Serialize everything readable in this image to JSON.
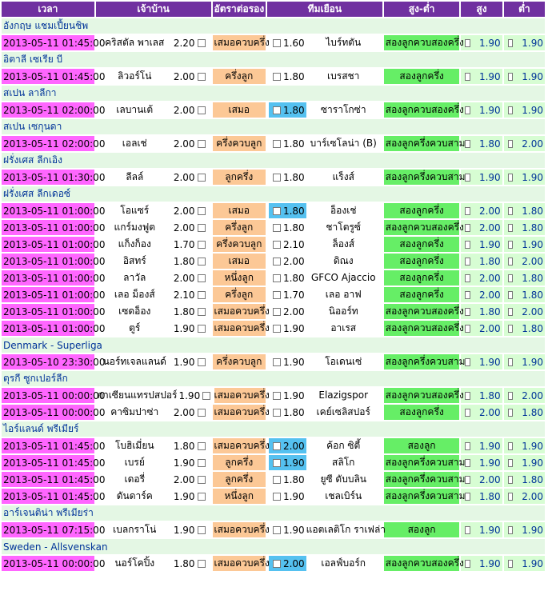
{
  "header": {
    "time": "เวลา",
    "home": "เจ้าบ้าน",
    "handicap": "อัตราต่อรอง",
    "away": "ทีมเยือน",
    "over_under": "สูง-ต่ำ",
    "over": "สูง",
    "under": "ต่ำ"
  },
  "sections": [
    {
      "league": "อังกฤษ แชมเปี้ยนชิพ",
      "matches": [
        {
          "time": "2013-05-11 01:45:00",
          "home": "คริสตัล พาเลส",
          "home_price": "2.20",
          "handicap": "เสมอควบครึ่ง",
          "away_price": "1.60",
          "away": "ไบร์ทตัน",
          "ou": "สองลูกควบสองครึ่ง",
          "over": "1.90",
          "under": "1.90",
          "fav": "home",
          "away_hl": false
        }
      ]
    },
    {
      "league": "อิตาลี เซเรีย บี",
      "matches": [
        {
          "time": "2013-05-11 01:45:00",
          "home": "ลิวอร์โน่",
          "home_price": "2.00",
          "handicap": "ครึ่งลูก",
          "away_price": "1.80",
          "away": "เบรสชา",
          "ou": "สองลูกครึ่ง",
          "over": "1.90",
          "under": "1.90",
          "fav": "home",
          "away_hl": false
        }
      ]
    },
    {
      "league": "สเปน ลาลีกา",
      "matches": [
        {
          "time": "2013-05-11 02:00:00",
          "home": "เลบานเต้",
          "home_price": "2.00",
          "handicap": "เสมอ",
          "away_price": "1.80",
          "away": "ซาราโกซ่า",
          "ou": "สองลูกควบสองครึ่ง",
          "over": "1.90",
          "under": "1.90",
          "fav": "away",
          "away_hl": true
        }
      ]
    },
    {
      "league": "สเปน เซกุนดา",
      "matches": [
        {
          "time": "2013-05-11 02:00:00",
          "home": "เอลเช่",
          "home_price": "2.00",
          "handicap": "ครึ่งควบลูก",
          "away_price": "1.80",
          "away": "บาร์เซโลน่า (B)",
          "ou": "สองลูกครึ่งควบสาม",
          "over": "1.80",
          "under": "2.00",
          "fav": "home",
          "away_hl": false
        }
      ]
    },
    {
      "league": "ฝรั่งเศส ลีกเอิง",
      "matches": [
        {
          "time": "2013-05-11 01:30:00",
          "home": "ลีลล์",
          "home_price": "2.00",
          "handicap": "ลูกครึ่ง",
          "away_price": "1.80",
          "away": "แร็งส์",
          "ou": "สองลูกครึ่งควบสาม",
          "over": "1.90",
          "under": "1.90",
          "fav": "home",
          "away_hl": false
        }
      ]
    },
    {
      "league": "ฝรั่งเศส ลีกเดอซ์",
      "matches": [
        {
          "time": "2013-05-11 01:00:00",
          "home": "โอแซร์",
          "home_price": "2.00",
          "handicap": "เสมอ",
          "away_price": "1.80",
          "away": "อ็องเช่",
          "ou": "สองลูกครึ่ง",
          "over": "2.00",
          "under": "1.80",
          "fav": "away",
          "away_hl": true
        },
        {
          "time": "2013-05-11 01:00:00",
          "home": "แกร์มงฟูต",
          "home_price": "2.00",
          "handicap": "ครึ่งลูก",
          "away_price": "1.80",
          "away": "ชาโตรูซ์",
          "ou": "สองลูกควบสองครึ่ง",
          "over": "2.00",
          "under": "1.80",
          "fav": "home",
          "away_hl": false
        },
        {
          "time": "2013-05-11 01:00:00",
          "home": "แก็งก็อง",
          "home_price": "1.70",
          "handicap": "ครึ่งควบลูก",
          "away_price": "2.10",
          "away": "ล็องส์",
          "ou": "สองลูกครึ่ง",
          "over": "1.90",
          "under": "1.90",
          "fav": "home",
          "away_hl": false
        },
        {
          "time": "2013-05-11 01:00:00",
          "home": "อิสทร์",
          "home_price": "1.80",
          "handicap": "เสมอ",
          "away_price": "2.00",
          "away": "ดิณง",
          "ou": "สองลูกครึ่ง",
          "over": "1.80",
          "under": "2.00",
          "fav": "none",
          "away_hl": false
        },
        {
          "time": "2013-05-11 01:00:00",
          "home": "ลาวัล",
          "home_price": "2.00",
          "handicap": "หนึ่งลูก",
          "away_price": "1.80",
          "away": "GFCO Ajaccio",
          "ou": "สองลูกครึ่ง",
          "over": "2.00",
          "under": "1.80",
          "fav": "home",
          "away_hl": false
        },
        {
          "time": "2013-05-11 01:00:00",
          "home": "เลอ ม็องส์",
          "home_price": "2.10",
          "handicap": "ครึ่งลูก",
          "away_price": "1.70",
          "away": "เลอ อาฟ",
          "ou": "สองลูกครึ่ง",
          "over": "2.00",
          "under": "1.80",
          "fav": "home",
          "away_hl": false
        },
        {
          "time": "2013-05-11 01:00:00",
          "home": "เซดอ็อง",
          "home_price": "1.80",
          "handicap": "เสมอควบครึ่ง",
          "away_price": "2.00",
          "away": "นิออร์ท",
          "ou": "สองลูกควบสองครึ่ง",
          "over": "1.80",
          "under": "2.00",
          "fav": "home",
          "away_hl": false
        },
        {
          "time": "2013-05-11 01:00:00",
          "home": "ตูร์",
          "home_price": "1.90",
          "handicap": "เสมอควบครึ่ง",
          "away_price": "1.90",
          "away": "อาเรส",
          "ou": "สองลูกควบสองครึ่ง",
          "over": "2.00",
          "under": "1.80",
          "fav": "home",
          "away_hl": false
        }
      ]
    },
    {
      "league": "Denmark - Superliga",
      "matches": [
        {
          "time": "2013-05-10 23:30:00",
          "home": "นอร์ทเจลแลนด์",
          "home_price": "1.90",
          "handicap": "ครึ่งควบลูก",
          "away_price": "1.90",
          "away": "โอเดนเซ่",
          "ou": "สองลูกครึ่งควบสาม",
          "over": "1.90",
          "under": "1.90",
          "fav": "home",
          "away_hl": false
        }
      ]
    },
    {
      "league": "ตุรกี ซูกเปอร์ลีก",
      "matches": [
        {
          "time": "2013-05-11 00:00:00",
          "home": "กาเซียนแทรปสปอร์",
          "home_price": "1.90",
          "handicap": "เสมอควบครึ่ง",
          "away_price": "1.90",
          "away": "Elazigspor",
          "ou": "สองลูกควบสองครึ่ง",
          "over": "1.80",
          "under": "2.00",
          "fav": "home",
          "away_hl": false
        },
        {
          "time": "2013-05-11 00:00:00",
          "home": "คาซิมปาซ่า",
          "home_price": "2.00",
          "handicap": "เสมอควบครึ่ง",
          "away_price": "1.80",
          "away": "เคย์เซลิสปอร์",
          "ou": "สองลูกครึ่ง",
          "over": "2.00",
          "under": "1.80",
          "fav": "home",
          "away_hl": false
        }
      ]
    },
    {
      "league": "ไอร์แลนด์ พรีเมียร์",
      "matches": [
        {
          "time": "2013-05-11 01:45:00",
          "home": "โบฮิเมี่ยน",
          "home_price": "1.80",
          "handicap": "เสมอควบครึ่ง",
          "away_price": "2.00",
          "away": "ค้อก ซิตี้",
          "ou": "สองลูก",
          "over": "1.90",
          "under": "1.90",
          "fav": "away",
          "away_hl": true
        },
        {
          "time": "2013-05-11 01:45:00",
          "home": "เบรย์",
          "home_price": "1.90",
          "handicap": "ลูกครึ่ง",
          "away_price": "1.90",
          "away": "สลิโก",
          "ou": "สองลูกครึ่งควบสาม",
          "over": "1.90",
          "under": "1.90",
          "fav": "away",
          "away_hl": true
        },
        {
          "time": "2013-05-11 01:45:00",
          "home": "เดอรี่",
          "home_price": "2.00",
          "handicap": "ลูกครึ่ง",
          "away_price": "1.80",
          "away": "ยูซี ดับบลิน",
          "ou": "สองลูกครึ่งควบสาม",
          "over": "2.00",
          "under": "1.80",
          "fav": "home",
          "away_hl": false
        },
        {
          "time": "2013-05-11 01:45:00",
          "home": "ดันดาร์ค",
          "home_price": "1.90",
          "handicap": "หนึ่งลูก",
          "away_price": "1.90",
          "away": "เชลเบิร์น",
          "ou": "สองลูกครึ่งควบสาม",
          "over": "1.80",
          "under": "2.00",
          "fav": "home",
          "away_hl": false
        }
      ]
    },
    {
      "league": "อาร์เจนติน่า พรีเมียร่า",
      "matches": [
        {
          "time": "2013-05-11 07:15:00",
          "home": "เบลกราโน่",
          "home_price": "1.90",
          "handicap": "เสมอควบครึ่ง",
          "away_price": "1.90",
          "away": "แอตเลติโก ราเฟล่า",
          "ou": "สองลูก",
          "over": "1.90",
          "under": "1.90",
          "fav": "home",
          "away_hl": false
        }
      ]
    },
    {
      "league": "Sweden - Allsvenskan",
      "matches": [
        {
          "time": "2013-05-11 00:00:00",
          "home": "นอร์โคปิ้ง",
          "home_price": "1.80",
          "handicap": "เสมอควบครึ่ง",
          "away_price": "2.00",
          "away": "เอลฟ์บอร์ก",
          "ou": "สองลูกควบสองครึ่ง",
          "over": "1.90",
          "under": "1.90",
          "fav": "away",
          "away_hl": true
        }
      ]
    }
  ]
}
